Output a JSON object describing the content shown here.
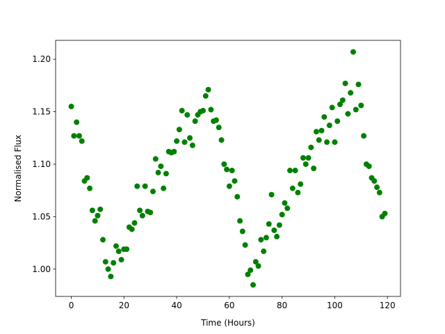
{
  "chart_data": {
    "type": "scatter",
    "xlabel": "Time (Hours)",
    "ylabel": "Normalised Flux",
    "color": "#008000",
    "x": [
      0,
      1,
      2,
      3,
      4,
      5,
      6,
      7,
      8,
      9,
      10,
      11,
      12,
      13,
      14,
      15,
      16,
      17,
      18,
      19,
      20,
      21,
      22,
      23,
      24,
      25,
      26,
      27,
      28,
      29,
      30,
      31,
      32,
      33,
      34,
      35,
      36,
      37,
      38,
      39,
      40,
      41,
      42,
      43,
      44,
      45,
      46,
      47,
      48,
      49,
      50,
      51,
      52,
      53,
      54,
      55,
      56,
      57,
      58,
      59,
      60,
      61,
      62,
      63,
      64,
      65,
      66,
      67,
      68,
      69,
      70,
      71,
      72,
      73,
      74,
      75,
      76,
      77,
      78,
      79,
      80,
      81,
      82,
      83,
      84,
      85,
      86,
      87,
      88,
      89,
      90,
      91,
      92,
      93,
      94,
      95,
      96,
      97,
      98,
      99,
      100,
      101,
      102,
      103,
      104,
      105,
      106,
      107,
      108,
      109,
      110,
      111,
      112,
      113,
      114,
      115,
      116,
      117,
      118,
      119
    ],
    "values": [
      1.155,
      1.127,
      1.14,
      1.127,
      1.122,
      1.084,
      1.087,
      1.077,
      1.056,
      1.046,
      1.051,
      1.057,
      1.028,
      1.007,
      1.0,
      0.993,
      1.006,
      1.022,
      1.017,
      1.009,
      1.019,
      1.019,
      1.04,
      1.038,
      1.044,
      1.079,
      1.056,
      1.051,
      1.079,
      1.055,
      1.054,
      1.074,
      1.105,
      1.092,
      1.098,
      1.077,
      1.091,
      1.112,
      1.111,
      1.112,
      1.122,
      1.133,
      1.151,
      1.121,
      1.147,
      1.125,
      1.118,
      1.141,
      1.147,
      1.15,
      1.151,
      1.165,
      1.171,
      1.152,
      1.141,
      1.142,
      1.135,
      1.123,
      1.1,
      1.095,
      1.079,
      1.094,
      1.084,
      1.069,
      1.046,
      1.036,
      1.023,
      0.995,
      0.999,
      0.985,
      1.007,
      1.003,
      1.028,
      1.017,
      1.03,
      1.043,
      1.071,
      1.037,
      1.031,
      1.042,
      1.052,
      1.063,
      1.058,
      1.094,
      1.077,
      1.094,
      1.073,
      1.081,
      1.106,
      1.1,
      1.106,
      1.116,
      1.096,
      1.131,
      1.123,
      1.132,
      1.145,
      1.121,
      1.137,
      1.154,
      1.121,
      1.141,
      1.157,
      1.161,
      1.177,
      1.148,
      1.168,
      1.207,
      1.152,
      1.176,
      1.156,
      1.127,
      1.1,
      1.098,
      1.087,
      1.084,
      1.078,
      1.073,
      1.05,
      1.053
    ],
    "xlim": [
      -5.95,
      124.95
    ],
    "ylim": [
      0.974,
      1.218
    ],
    "xticks": [
      0,
      20,
      40,
      60,
      80,
      100,
      120
    ],
    "yticks": [
      {
        "value": 1.0,
        "label": "1.00"
      },
      1.05,
      {
        "value": 1.1,
        "label": "1.10"
      },
      1.15,
      {
        "value": 1.2,
        "label": "1.20"
      }
    ]
  }
}
